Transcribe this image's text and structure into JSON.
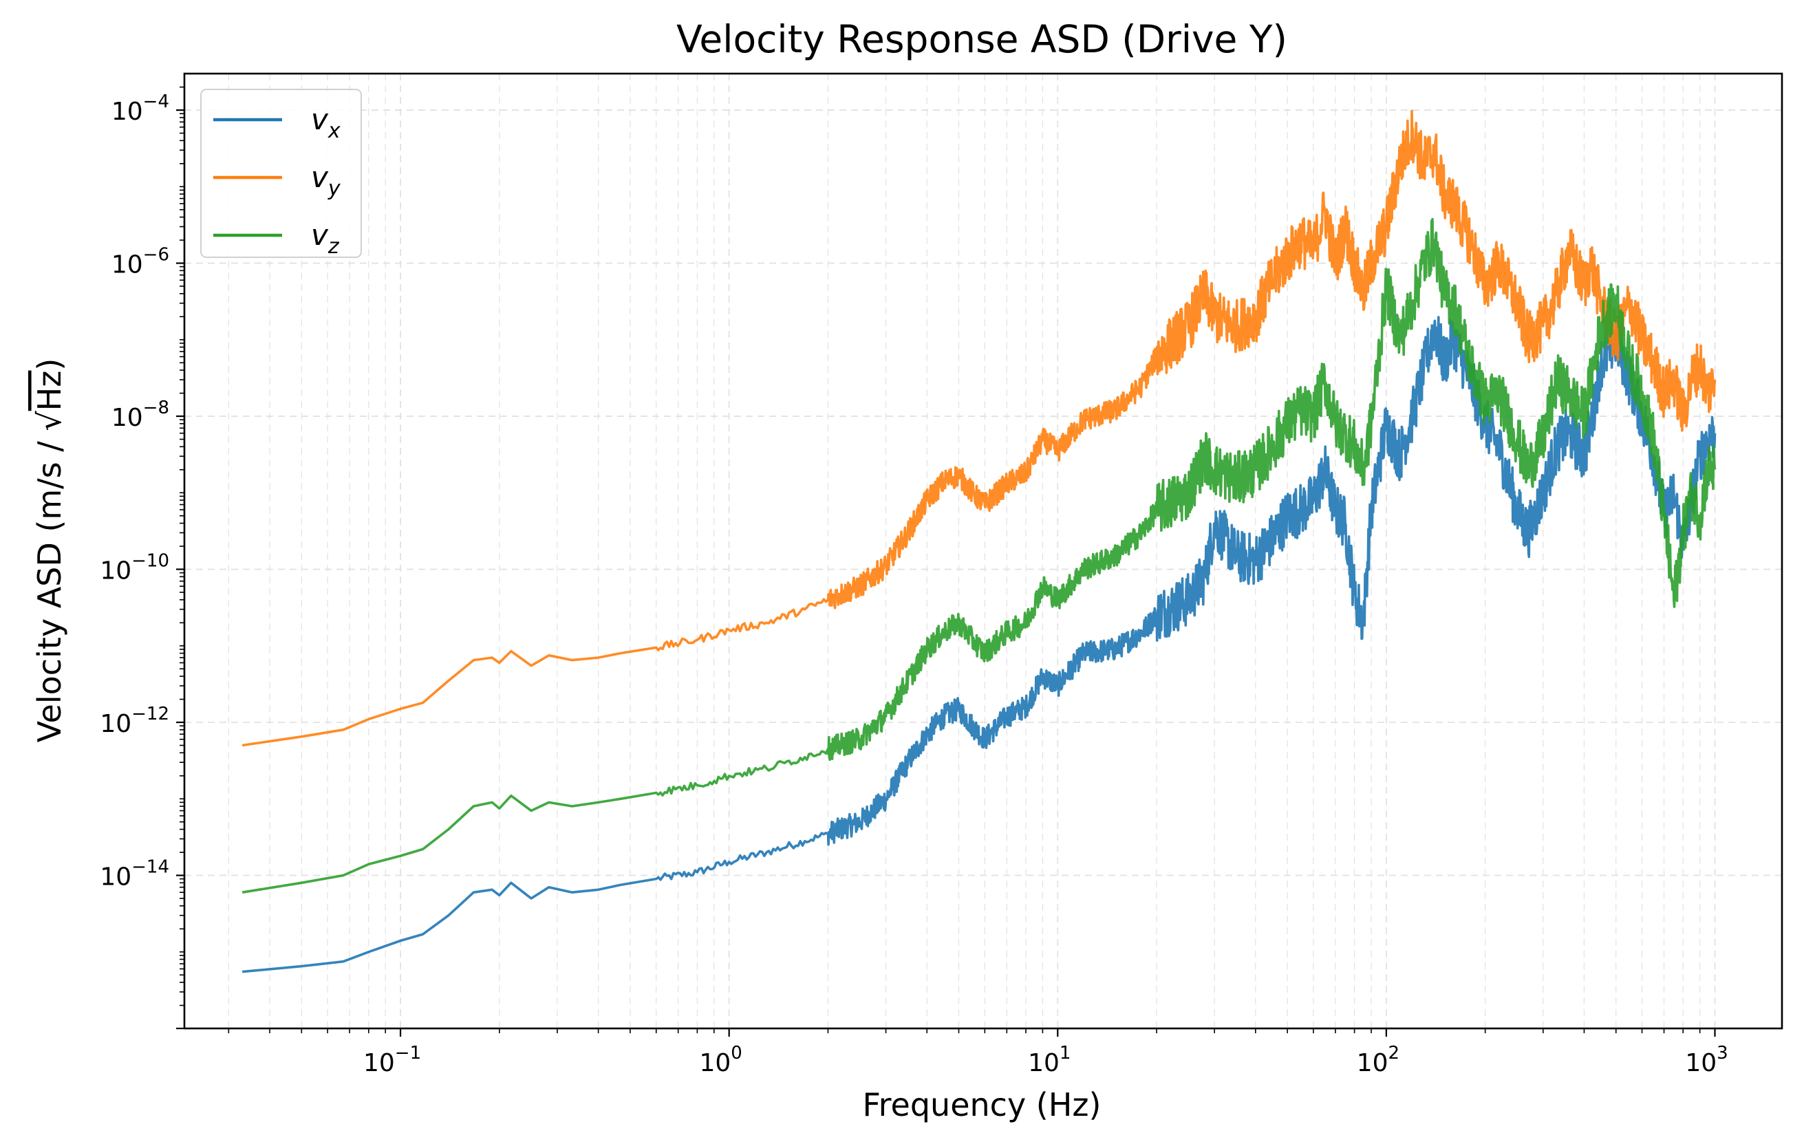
{
  "chart_data": {
    "type": "line",
    "title": "Velocity Response ASD (Drive Y)",
    "xlabel": "Frequency (Hz)",
    "ylabel_prefix": "Velocity ASD (m/s / ",
    "ylabel_radical": "√",
    "ylabel_radicand": "Hz",
    "ylabel_suffix": ")",
    "x_scale": "log",
    "y_scale": "log",
    "xlim": [
      0.022,
      1600
    ],
    "ylim": [
      1e-16,
      0.0003
    ],
    "grid": true,
    "legend_position": "upper-left",
    "x_ticks": [
      {
        "value": 0.1,
        "base": "10",
        "exp": "−1"
      },
      {
        "value": 1,
        "base": "10",
        "exp": "0"
      },
      {
        "value": 10,
        "base": "10",
        "exp": "1"
      },
      {
        "value": 100,
        "base": "10",
        "exp": "2"
      },
      {
        "value": 1000,
        "base": "10",
        "exp": "3"
      }
    ],
    "y_ticks": [
      {
        "value": 1e-14,
        "base": "10",
        "exp": "−14"
      },
      {
        "value": 1e-12,
        "base": "10",
        "exp": "−12"
      },
      {
        "value": 1e-10,
        "base": "10",
        "exp": "−10"
      },
      {
        "value": 1e-08,
        "base": "10",
        "exp": "−8"
      },
      {
        "value": 1e-06,
        "base": "10",
        "exp": "−6"
      },
      {
        "value": 0.0001,
        "base": "10",
        "exp": "−4"
      }
    ],
    "series": [
      {
        "name": "v",
        "subscript": "x",
        "color": "#1f77b4",
        "points": [
          [
            0.033,
            5.5e-16
          ],
          [
            0.05,
            6.5e-16
          ],
          [
            0.067,
            7.5e-16
          ],
          [
            0.08,
            1e-15
          ],
          [
            0.1,
            1.4e-15
          ],
          [
            0.117,
            1.7e-15
          ],
          [
            0.14,
            3e-15
          ],
          [
            0.167,
            6e-15
          ],
          [
            0.19,
            6.5e-15
          ],
          [
            0.2,
            5.5e-15
          ],
          [
            0.217,
            8e-15
          ],
          [
            0.25,
            5e-15
          ],
          [
            0.283,
            7e-15
          ],
          [
            0.333,
            6e-15
          ],
          [
            0.4,
            6.5e-15
          ],
          [
            0.467,
            7.5e-15
          ],
          [
            0.6,
            9e-15
          ],
          [
            0.8,
            1.1e-14
          ],
          [
            1,
            1.5e-14
          ],
          [
            1.3,
            2e-14
          ],
          [
            1.7,
            2.8e-14
          ],
          [
            2,
            3.5e-14
          ],
          [
            2.5,
            5e-14
          ],
          [
            3,
            1e-13
          ],
          [
            3.5,
            3e-13
          ],
          [
            4,
            7e-13
          ],
          [
            4.5,
            1.2e-12
          ],
          [
            5,
            1.5e-12
          ],
          [
            5.5,
            9e-13
          ],
          [
            6,
            6e-13
          ],
          [
            7,
            1.2e-12
          ],
          [
            8,
            1.6e-12
          ],
          [
            9,
            4e-12
          ],
          [
            10,
            3e-12
          ],
          [
            12,
            8e-12
          ],
          [
            15,
            9e-12
          ],
          [
            18,
            1.5e-11
          ],
          [
            20,
            2.5e-11
          ],
          [
            25,
            4e-11
          ],
          [
            28,
            8e-11
          ],
          [
            30,
            4e-10
          ],
          [
            35,
            1.5e-10
          ],
          [
            40,
            1.3e-10
          ],
          [
            45,
            2.5e-10
          ],
          [
            50,
            5e-10
          ],
          [
            55,
            6e-10
          ],
          [
            60,
            8e-10
          ],
          [
            65,
            2e-09
          ],
          [
            70,
            6e-10
          ],
          [
            75,
            4e-10
          ],
          [
            80,
            5e-11
          ],
          [
            85,
            2e-11
          ],
          [
            90,
            6e-10
          ],
          [
            100,
            8e-09
          ],
          [
            110,
            3e-09
          ],
          [
            120,
            1e-08
          ],
          [
            130,
            4e-08
          ],
          [
            140,
            1.5e-07
          ],
          [
            150,
            5e-08
          ],
          [
            160,
            1e-07
          ],
          [
            180,
            3e-08
          ],
          [
            200,
            8e-09
          ],
          [
            220,
            4e-09
          ],
          [
            250,
            6e-10
          ],
          [
            270,
            3e-10
          ],
          [
            300,
            1e-09
          ],
          [
            330,
            4e-09
          ],
          [
            360,
            6e-09
          ],
          [
            400,
            3e-09
          ],
          [
            420,
            8e-09
          ],
          [
            450,
            5e-08
          ],
          [
            500,
            1e-07
          ],
          [
            550,
            3e-08
          ],
          [
            600,
            1e-08
          ],
          [
            650,
            3e-09
          ],
          [
            700,
            5e-10
          ],
          [
            750,
            1e-09
          ],
          [
            800,
            2e-10
          ],
          [
            850,
            8e-10
          ],
          [
            900,
            3e-09
          ],
          [
            950,
            5e-09
          ],
          [
            1000,
            6e-09
          ]
        ]
      },
      {
        "name": "v",
        "subscript": "y",
        "color": "#ff7f0e",
        "points": [
          [
            0.033,
            5e-13
          ],
          [
            0.05,
            6.5e-13
          ],
          [
            0.067,
            8e-13
          ],
          [
            0.08,
            1.1e-12
          ],
          [
            0.1,
            1.5e-12
          ],
          [
            0.117,
            1.8e-12
          ],
          [
            0.14,
            3.5e-12
          ],
          [
            0.167,
            6.5e-12
          ],
          [
            0.19,
            7e-12
          ],
          [
            0.2,
            6e-12
          ],
          [
            0.217,
            8.5e-12
          ],
          [
            0.25,
            5.5e-12
          ],
          [
            0.283,
            7.5e-12
          ],
          [
            0.333,
            6.5e-12
          ],
          [
            0.4,
            7e-12
          ],
          [
            0.467,
            8e-12
          ],
          [
            0.6,
            9.5e-12
          ],
          [
            0.8,
            1.2e-11
          ],
          [
            1,
            1.6e-11
          ],
          [
            1.3,
            2e-11
          ],
          [
            1.7,
            3e-11
          ],
          [
            2,
            4e-11
          ],
          [
            2.5,
            6e-11
          ],
          [
            3,
            1.1e-10
          ],
          [
            3.5,
            3e-10
          ],
          [
            4,
            8e-10
          ],
          [
            4.5,
            1.4e-09
          ],
          [
            5,
            1.7e-09
          ],
          [
            5.5,
            1e-09
          ],
          [
            6,
            7e-10
          ],
          [
            7,
            1.3e-09
          ],
          [
            8,
            1.8e-09
          ],
          [
            9,
            5e-09
          ],
          [
            10,
            3.5e-09
          ],
          [
            12,
            9e-09
          ],
          [
            15,
            1.2e-08
          ],
          [
            18,
            2.5e-08
          ],
          [
            20,
            6e-08
          ],
          [
            25,
            1.5e-07
          ],
          [
            28,
            4e-07
          ],
          [
            30,
            2e-07
          ],
          [
            35,
            1.5e-07
          ],
          [
            40,
            2e-07
          ],
          [
            45,
            6e-07
          ],
          [
            50,
            1.2e-06
          ],
          [
            55,
            2e-06
          ],
          [
            60,
            1.5e-06
          ],
          [
            65,
            5e-06
          ],
          [
            70,
            1e-06
          ],
          [
            75,
            3e-06
          ],
          [
            80,
            1e-06
          ],
          [
            85,
            4e-07
          ],
          [
            90,
            1e-06
          ],
          [
            100,
            3e-06
          ],
          [
            110,
            2e-05
          ],
          [
            120,
            5e-05
          ],
          [
            130,
            2e-05
          ],
          [
            140,
            3e-05
          ],
          [
            150,
            8e-06
          ],
          [
            160,
            6e-06
          ],
          [
            180,
            2e-06
          ],
          [
            200,
            5e-07
          ],
          [
            220,
            1e-06
          ],
          [
            250,
            3e-07
          ],
          [
            270,
            1e-07
          ],
          [
            300,
            1.5e-07
          ],
          [
            330,
            4e-07
          ],
          [
            360,
            1.5e-06
          ],
          [
            400,
            5e-07
          ],
          [
            420,
            1e-06
          ],
          [
            450,
            3e-07
          ],
          [
            500,
            1e-07
          ],
          [
            550,
            3e-07
          ],
          [
            600,
            1e-07
          ],
          [
            650,
            5e-08
          ],
          [
            700,
            2e-08
          ],
          [
            750,
            3e-08
          ],
          [
            800,
            1e-08
          ],
          [
            850,
            3e-08
          ],
          [
            900,
            5e-08
          ],
          [
            950,
            2e-08
          ],
          [
            1000,
            3e-08
          ]
        ]
      },
      {
        "name": "v",
        "subscript": "z",
        "color": "#2ca02c",
        "points": [
          [
            0.033,
            6e-15
          ],
          [
            0.05,
            8e-15
          ],
          [
            0.067,
            1e-14
          ],
          [
            0.08,
            1.4e-14
          ],
          [
            0.1,
            1.8e-14
          ],
          [
            0.117,
            2.2e-14
          ],
          [
            0.14,
            4e-14
          ],
          [
            0.167,
            8e-14
          ],
          [
            0.19,
            9e-14
          ],
          [
            0.2,
            7.5e-14
          ],
          [
            0.217,
            1.1e-13
          ],
          [
            0.25,
            7e-14
          ],
          [
            0.283,
            9e-14
          ],
          [
            0.333,
            8e-14
          ],
          [
            0.4,
            9e-14
          ],
          [
            0.467,
            1e-13
          ],
          [
            0.6,
            1.2e-13
          ],
          [
            0.8,
            1.5e-13
          ],
          [
            1,
            2e-13
          ],
          [
            1.3,
            2.5e-13
          ],
          [
            1.7,
            3.5e-13
          ],
          [
            2,
            4.5e-13
          ],
          [
            2.5,
            6e-13
          ],
          [
            3,
            1.2e-12
          ],
          [
            3.5,
            3.5e-12
          ],
          [
            4,
            9e-12
          ],
          [
            4.5,
            1.5e-11
          ],
          [
            5,
            2e-11
          ],
          [
            5.5,
            1.2e-11
          ],
          [
            6,
            8e-12
          ],
          [
            7,
            1.5e-11
          ],
          [
            8,
            2e-11
          ],
          [
            9,
            6e-11
          ],
          [
            10,
            4e-11
          ],
          [
            12,
            1e-10
          ],
          [
            15,
            1.5e-10
          ],
          [
            18,
            3e-10
          ],
          [
            20,
            6e-10
          ],
          [
            25,
            1e-09
          ],
          [
            28,
            3e-09
          ],
          [
            30,
            2e-09
          ],
          [
            35,
            1.5e-09
          ],
          [
            40,
            2e-09
          ],
          [
            45,
            4e-09
          ],
          [
            50,
            8e-09
          ],
          [
            55,
            1.2e-08
          ],
          [
            60,
            1e-08
          ],
          [
            65,
            3e-08
          ],
          [
            70,
            8e-09
          ],
          [
            75,
            6e-09
          ],
          [
            80,
            4e-09
          ],
          [
            85,
            2e-09
          ],
          [
            90,
            8e-09
          ],
          [
            100,
            5e-07
          ],
          [
            110,
            1e-07
          ],
          [
            120,
            3e-07
          ],
          [
            130,
            1e-06
          ],
          [
            140,
            2e-06
          ],
          [
            150,
            4e-07
          ],
          [
            160,
            3e-07
          ],
          [
            180,
            5e-08
          ],
          [
            200,
            1.5e-08
          ],
          [
            220,
            2e-08
          ],
          [
            250,
            5e-09
          ],
          [
            270,
            2e-09
          ],
          [
            300,
            5e-09
          ],
          [
            330,
            3e-08
          ],
          [
            360,
            2e-08
          ],
          [
            400,
            1e-08
          ],
          [
            420,
            3e-08
          ],
          [
            450,
            1.5e-07
          ],
          [
            500,
            3e-07
          ],
          [
            550,
            5e-08
          ],
          [
            600,
            2e-08
          ],
          [
            650,
            5e-09
          ],
          [
            700,
            5e-10
          ],
          [
            750,
            4e-11
          ],
          [
            800,
            3e-10
          ],
          [
            850,
            1e-09
          ],
          [
            900,
            5e-10
          ],
          [
            950,
            2e-09
          ],
          [
            1000,
            2e-09
          ]
        ]
      }
    ]
  }
}
